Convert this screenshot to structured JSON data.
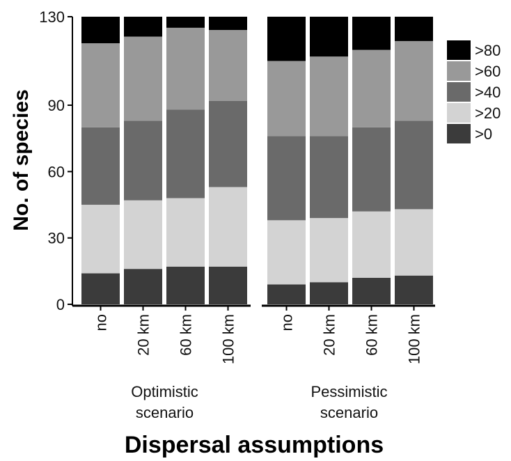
{
  "chart_data": {
    "type": "bar",
    "stacked": true,
    "ylabel": "No. of species",
    "xlabel": "Dispersal assumptions",
    "ylim": [
      0,
      130
    ],
    "yticks": [
      0,
      30,
      60,
      90,
      130
    ],
    "legend_position": "right",
    "panels": [
      {
        "name": "Optimistic scenario",
        "categories": [
          "no",
          "20 km",
          "60 km",
          "100 km"
        ],
        "series": [
          {
            "name": ">0",
            "values": [
              14,
              16,
              17,
              17
            ]
          },
          {
            "name": ">20",
            "values": [
              31,
              31,
              31,
              36
            ]
          },
          {
            "name": ">40",
            "values": [
              35,
              36,
              40,
              39
            ]
          },
          {
            "name": ">60",
            "values": [
              38,
              38,
              37,
              32
            ]
          },
          {
            "name": ">80",
            "values": [
              12,
              9,
              5,
              6
            ]
          }
        ]
      },
      {
        "name": "Pessimistic scenario",
        "categories": [
          "no",
          "20 km",
          "60 km",
          "100 km"
        ],
        "series": [
          {
            "name": ">0",
            "values": [
              9,
              10,
              12,
              13
            ]
          },
          {
            "name": ">20",
            "values": [
              29,
              29,
              30,
              30
            ]
          },
          {
            "name": ">40",
            "values": [
              38,
              37,
              38,
              40
            ]
          },
          {
            "name": ">60",
            "values": [
              34,
              36,
              35,
              36
            ]
          },
          {
            "name": ">80",
            "values": [
              20,
              18,
              15,
              11
            ]
          }
        ]
      }
    ],
    "colors": {
      ">0": "#3b3b3b",
      ">20": "#d3d3d3",
      ">40": "#6a6a6a",
      ">60": "#999999",
      ">80": "#000000"
    },
    "legend_order": [
      ">80",
      ">60",
      ">40",
      ">20",
      ">0"
    ]
  }
}
